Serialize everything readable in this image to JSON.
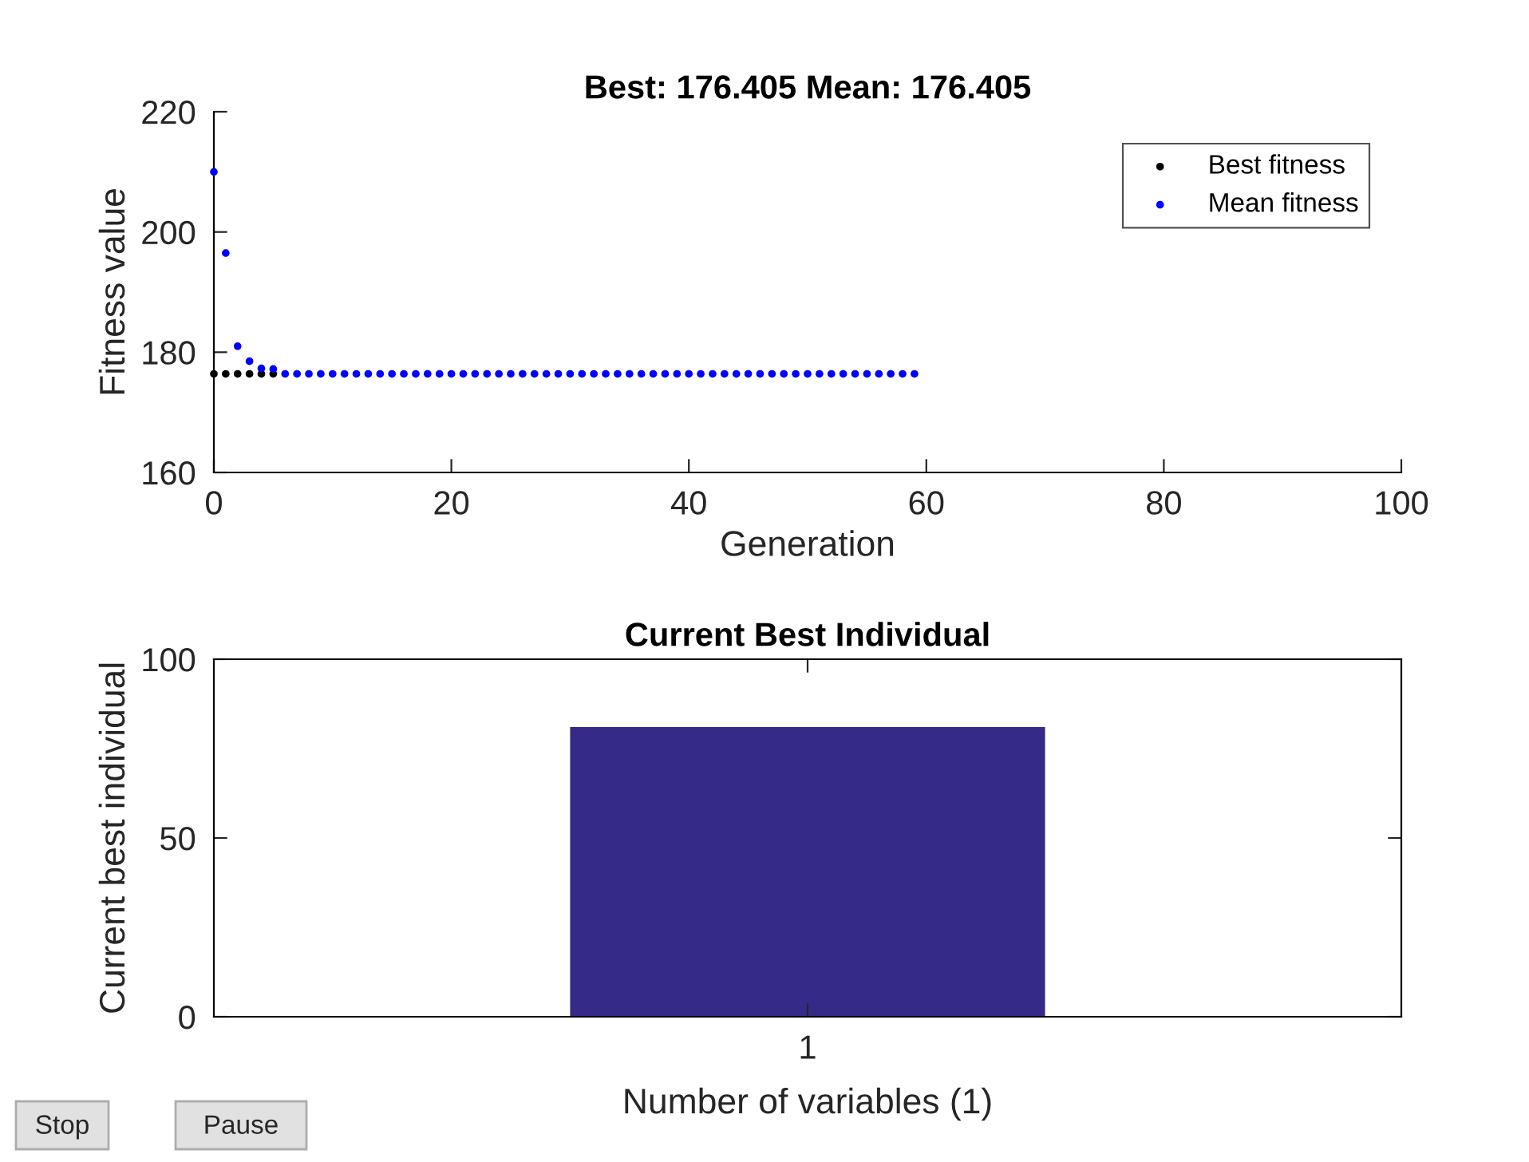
{
  "chart_data": [
    {
      "type": "scatter",
      "title": "Best: 176.405 Mean: 176.405",
      "xlabel": "Generation",
      "ylabel": "Fitness value",
      "xlim": [
        0,
        100
      ],
      "ylim": [
        160,
        220
      ],
      "xticks": [
        0,
        20,
        40,
        60,
        80,
        100
      ],
      "yticks": [
        160,
        180,
        200,
        220
      ],
      "grid": false,
      "legend": "top right",
      "marker": "circle",
      "series": [
        {
          "name": "Best fitness",
          "color": "#000000",
          "x": [
            0,
            1,
            2,
            3,
            4,
            5
          ],
          "values": [
            176.4,
            176.4,
            176.4,
            176.4,
            176.4,
            176.4
          ]
        },
        {
          "name": "Mean fitness",
          "color": "#0000ff",
          "x": [
            0,
            1,
            2,
            3,
            4,
            5,
            6,
            7,
            8,
            9,
            10,
            11,
            12,
            13,
            14,
            15,
            16,
            17,
            18,
            19,
            20,
            21,
            22,
            23,
            24,
            25,
            26,
            27,
            28,
            29,
            30,
            31,
            32,
            33,
            34,
            35,
            36,
            37,
            38,
            39,
            40,
            41,
            42,
            43,
            44,
            45,
            46,
            47,
            48,
            49,
            50,
            51,
            52,
            53,
            54,
            55,
            56,
            57,
            58,
            59
          ],
          "values": [
            210,
            196.5,
            181,
            178.5,
            177.3,
            177.2,
            176.4,
            176.4,
            176.4,
            176.4,
            176.4,
            176.4,
            176.4,
            176.4,
            176.4,
            176.4,
            176.4,
            176.4,
            176.4,
            176.4,
            176.4,
            176.4,
            176.4,
            176.4,
            176.4,
            176.4,
            176.4,
            176.4,
            176.4,
            176.4,
            176.4,
            176.4,
            176.4,
            176.4,
            176.4,
            176.4,
            176.4,
            176.4,
            176.4,
            176.4,
            176.4,
            176.4,
            176.4,
            176.4,
            176.4,
            176.4,
            176.4,
            176.4,
            176.4,
            176.4,
            176.4,
            176.4,
            176.4,
            176.4,
            176.4,
            176.4,
            176.4,
            176.4,
            176.4,
            176.4
          ]
        }
      ]
    },
    {
      "type": "bar",
      "title": "Current Best Individual",
      "xlabel": "Number of variables (1)",
      "ylabel": "Current best individual",
      "categories": [
        "1"
      ],
      "values": [
        81
      ],
      "color": "#352a87",
      "ylim": [
        0,
        100
      ],
      "yticks": [
        0,
        50,
        100
      ],
      "grid": false,
      "legend": false,
      "annotations": [
        "Stop",
        "Pause"
      ]
    }
  ]
}
